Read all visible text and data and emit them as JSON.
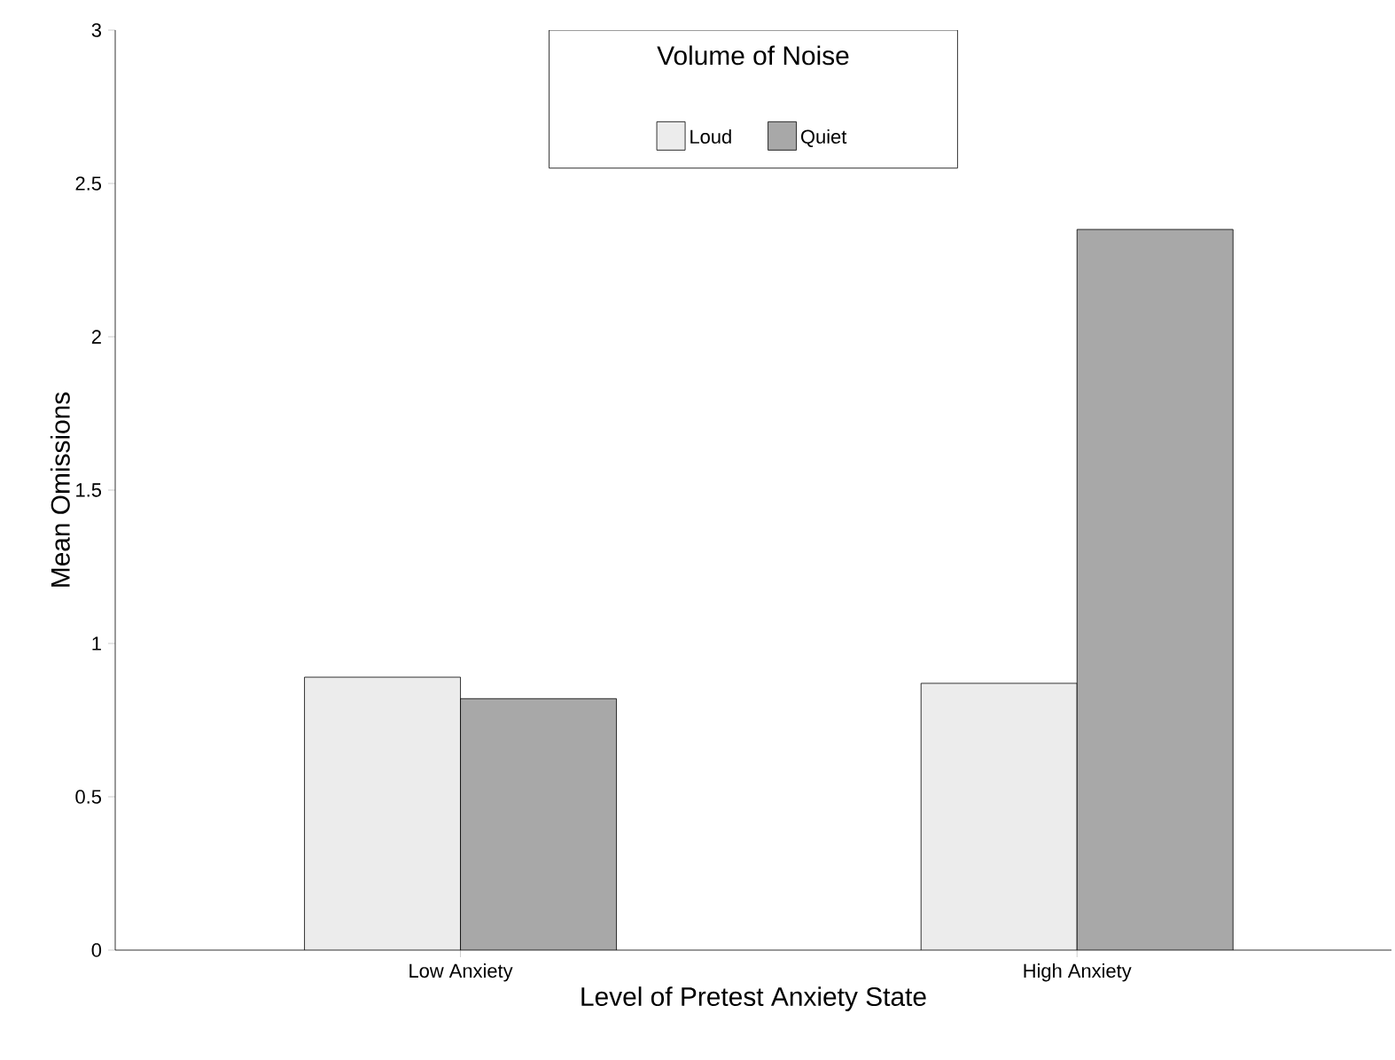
{
  "chart_data": {
    "type": "bar",
    "xlabel": "Level of Pretest Anxiety State",
    "ylabel": "Mean Omissions",
    "legend_title": "Volume of Noise",
    "categories": [
      "Low Anxiety",
      "High Anxiety"
    ],
    "series": [
      {
        "name": "Loud",
        "color": "#ececec",
        "values": [
          0.89,
          0.87
        ]
      },
      {
        "name": "Quiet",
        "color": "#a8a8a8",
        "values": [
          0.82,
          2.35
        ]
      }
    ],
    "ylim": [
      0,
      3
    ],
    "yticks": [
      0,
      0.5,
      1,
      1.5,
      2,
      2.5,
      3
    ],
    "legend": "top"
  }
}
